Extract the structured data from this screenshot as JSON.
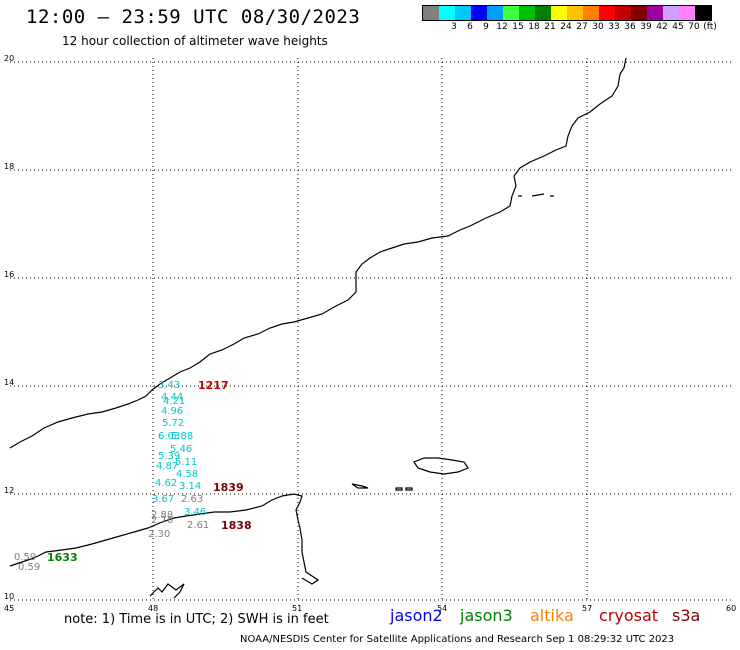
{
  "header": {
    "title": "12:00 – 23:59 UTC 08/30/2023",
    "subtitle": "12 hour collection of altimeter wave heights"
  },
  "color_scale": {
    "bins": [
      {
        "color": "#808080",
        "label": ""
      },
      {
        "color": "#00ffff",
        "label": "3"
      },
      {
        "color": "#00c8ff",
        "label": "6"
      },
      {
        "color": "#0000ff",
        "label": "9"
      },
      {
        "color": "#00a0ff",
        "label": "12"
      },
      {
        "color": "#40ff40",
        "label": "15"
      },
      {
        "color": "#00c000",
        "label": "18"
      },
      {
        "color": "#008000",
        "label": "21"
      },
      {
        "color": "#ffff00",
        "label": "24"
      },
      {
        "color": "#ffc000",
        "label": "27"
      },
      {
        "color": "#ff8000",
        "label": "30"
      },
      {
        "color": "#ff0000",
        "label": "33"
      },
      {
        "color": "#c00000",
        "label": "36"
      },
      {
        "color": "#800000",
        "label": "39"
      },
      {
        "color": "#a000a0",
        "label": "42"
      },
      {
        "color": "#d0a0ff",
        "label": "45"
      },
      {
        "color": "#ff80ff",
        "label": "70"
      },
      {
        "color": "#000000",
        "label": "(ft)"
      }
    ]
  },
  "axes": {
    "lat_ticks": [
      "20",
      "18",
      "16",
      "14",
      "12",
      "10"
    ],
    "lon_ticks": [
      "45",
      "48",
      "51",
      "54",
      "57",
      "60"
    ]
  },
  "observations": [
    {
      "text": "3.43",
      "color": "#00c8c8"
    },
    {
      "text": "1217",
      "color": "#c00000",
      "time": true
    },
    {
      "text": "4.44",
      "color": "#00c8c8"
    },
    {
      "text": "4.21",
      "color": "#00c8c8"
    },
    {
      "text": "4.96",
      "color": "#00c8c8"
    },
    {
      "text": "5.72",
      "color": "#00c8c8"
    },
    {
      "text": "6.03",
      "color": "#00c8c8"
    },
    {
      "text": "5.88",
      "color": "#00c8c8"
    },
    {
      "text": "5.46",
      "color": "#00c8c8"
    },
    {
      "text": "5.39",
      "color": "#00c8c8"
    },
    {
      "text": "5.11",
      "color": "#00c8c8"
    },
    {
      "text": "4.87",
      "color": "#00c8c8"
    },
    {
      "text": "4.58",
      "color": "#00c8c8"
    },
    {
      "text": "4.62",
      "color": "#00c8c8"
    },
    {
      "text": "3.14",
      "color": "#00c8c8"
    },
    {
      "text": "1839",
      "color": "#800000",
      "time": true
    },
    {
      "text": "3.67",
      "color": "#00c8c8"
    },
    {
      "text": "2.63",
      "color": "#808080"
    },
    {
      "text": "3.46",
      "color": "#00c8c8"
    },
    {
      "text": "2.88",
      "color": "#808080"
    },
    {
      "text": "2.76",
      "color": "#808080"
    },
    {
      "text": "2.61",
      "color": "#808080"
    },
    {
      "text": "1838",
      "color": "#800000",
      "time": true
    },
    {
      "text": "2.30",
      "color": "#808080"
    },
    {
      "text": "0.59",
      "color": "#808080"
    },
    {
      "text": "1633",
      "color": "#008000",
      "time": true
    },
    {
      "text": "0.59",
      "color": "#808080"
    }
  ],
  "footer": {
    "note": "note: 1) Time is in UTC; 2) SWH is in feet",
    "satellites": [
      {
        "name": "jason2",
        "color": "#0000ff"
      },
      {
        "name": "jason3",
        "color": "#008000"
      },
      {
        "name": "altika",
        "color": "#ff8000"
      },
      {
        "name": "cryosat",
        "color": "#c00000"
      },
      {
        "name": "s3a",
        "color": "#800000"
      }
    ],
    "credit": "NOAA/NESDIS Center for Satellite Applications and Research   Sep  1 08:29:32 UTC 2023"
  }
}
